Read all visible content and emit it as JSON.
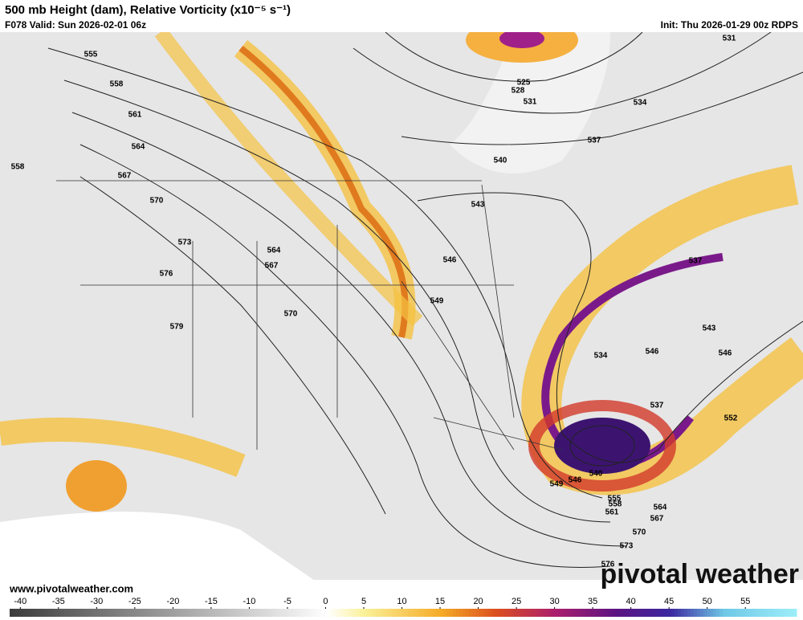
{
  "header": {
    "title": "500 mb Height (dam), Relative Vorticity (x10⁻⁵ s⁻¹)",
    "valid": "F078 Valid: Sun 2026-02-01 06z",
    "init": "Init: Thu 2026-01-29 00z RDPS"
  },
  "contour_labels": [
    555,
    558,
    561,
    564,
    567,
    558,
    570,
    573,
    576,
    579,
    564,
    567,
    570,
    525,
    528,
    531,
    531,
    534,
    537,
    540,
    543,
    546,
    549,
    537,
    543,
    546,
    546,
    534,
    537,
    552,
    540,
    546,
    549,
    555,
    558,
    561,
    564,
    567,
    570,
    573,
    576
  ],
  "footer": {
    "website": "www.pivotalweather.com",
    "logo": "pivotal weather"
  },
  "colorbar": {
    "range": [
      -41.4,
      61.5
    ],
    "ticks": [
      -40,
      -35,
      -30,
      -25,
      -20,
      -15,
      -10,
      -5,
      0,
      5,
      10,
      15,
      20,
      25,
      30,
      35,
      40,
      45,
      50,
      55
    ]
  }
}
